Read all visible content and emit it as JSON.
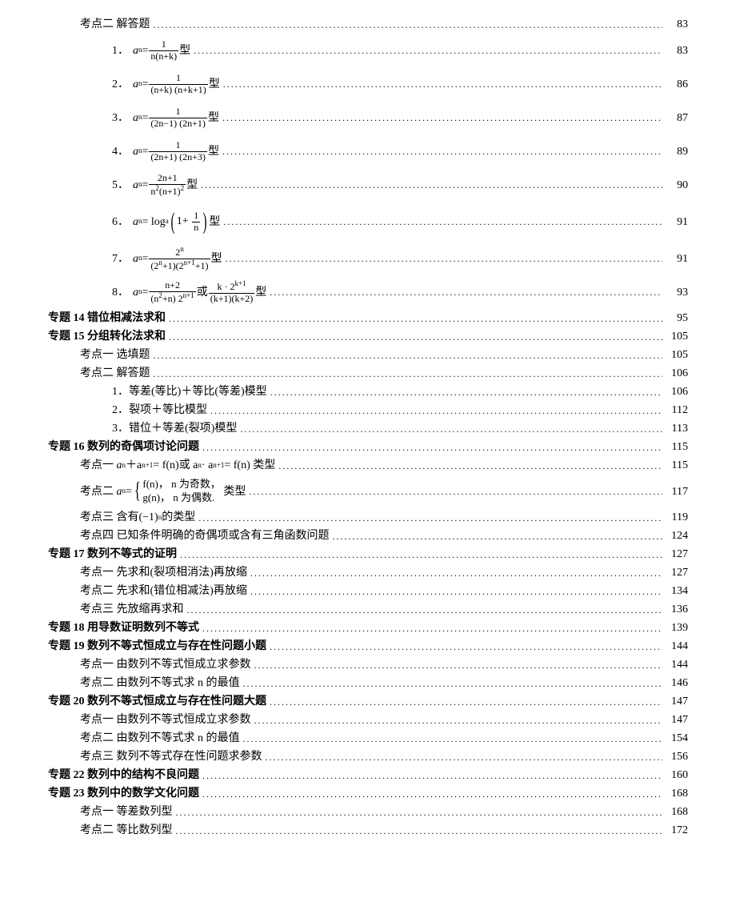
{
  "text_color": "#000000",
  "background_color": "#ffffff",
  "font_family": "SimSun",
  "base_font_size_pt": 10.5,
  "lines": {
    "l0": {
      "prefix": "考点二",
      "label": "解答题",
      "page": "83"
    },
    "l1": {
      "prefix": "1．",
      "an": "a",
      "eq": "=",
      "num": "1",
      "den": "n(n+k)",
      "suffix": "型",
      "page": "83"
    },
    "l2": {
      "prefix": "2．",
      "an": "a",
      "eq": "=",
      "num": "1",
      "den": "(n+k) (n+k+1)",
      "suffix": "型",
      "page": "86"
    },
    "l3": {
      "prefix": "3．",
      "an": "a",
      "eq": "=",
      "num": "1",
      "den": "(2n−1) (2n+1)",
      "suffix": "型",
      "page": "87"
    },
    "l4": {
      "prefix": "4．",
      "an": "a",
      "eq": "=",
      "num": "1",
      "den": "(2n+1) (2n+3)",
      "suffix": "型",
      "page": "89"
    },
    "l5": {
      "prefix": "5．",
      "an": "a",
      "eq": "=",
      "num": "2n+1",
      "den_pre": "n",
      "den_exp": "2",
      "den_mid": "(n+1)",
      "den_exp2": "2",
      "suffix": "型",
      "page": "90"
    },
    "l6": {
      "prefix": "6．",
      "an": "a",
      "eq": "= log",
      "inner_num": "1",
      "inner_den": "n",
      "inner_pre": "1+",
      "suffix": "型",
      "page": "91"
    },
    "l7": {
      "prefix": "7．",
      "an": "a",
      "eq": "=",
      "num_pre": "2",
      "num_exp": "n",
      "den": "(2",
      "den_e1": "n",
      "den_m": "+1)(2",
      "den_e2": "n+1",
      "den_end": "+1)",
      "suffix": "型",
      "page": "91"
    },
    "l8": {
      "prefix": "8．",
      "an": "a",
      "eq": "=",
      "f1_num": "n+2",
      "f1_den_a": "(n",
      "f1_den_e": "2",
      "f1_den_b": "+n) 2",
      "f1_den_e2": "n+1",
      "or": "或",
      "f2_num_a": "k · 2",
      "f2_num_e": "k+1",
      "f2_den": "(k+1)(k+2)",
      "suffix": "型",
      "page": "93"
    },
    "l9": {
      "prefix": "专题 14",
      "label": "错位相减法求和",
      "page": "95"
    },
    "l10": {
      "prefix": "专题 15",
      "label": "分组转化法求和",
      "page": "105"
    },
    "l11": {
      "prefix": "考点一",
      "label": "选填题",
      "page": "105"
    },
    "l12": {
      "prefix": "考点二",
      "label": "解答题",
      "page": "106"
    },
    "l13": {
      "prefix": "1．",
      "label": "等差(等比)＋等比(等差)模型",
      "page": "106"
    },
    "l14": {
      "prefix": "2．",
      "label": "裂项＋等比模型",
      "page": "112"
    },
    "l15": {
      "prefix": "3．",
      "label": "错位＋等差(裂项)模型",
      "page": "113"
    },
    "l16": {
      "prefix": "专题 16",
      "label": "数列的奇偶项讨论问题",
      "page": "115"
    },
    "l17": {
      "prefix": "考点一",
      "an": "a",
      "plus": "＋a",
      "eq1": "= f(n)",
      "or": "或 a",
      "mid": " · a",
      "eq2": "= f(n) 类型",
      "page": "115"
    },
    "l18": {
      "prefix": "考点二",
      "an": "a",
      "eq": "=",
      "case1": "f(n)， n 为奇数，",
      "case2": "g(n)， n 为偶数.",
      "suffix": "类型",
      "page": "117"
    },
    "l19": {
      "prefix": "考点三",
      "label_a": "含有(−1)",
      "label_exp": "n",
      "label_b": "的类型",
      "page": "119"
    },
    "l20": {
      "prefix": "考点四",
      "label": "已知条件明确的奇偶项或含有三角函数问题",
      "page": "124"
    },
    "l21": {
      "prefix": "专题 17",
      "label": "数列不等式的证明",
      "page": "127"
    },
    "l22": {
      "prefix": "考点一",
      "label": "先求和(裂项相消法)再放缩",
      "page": "127"
    },
    "l23": {
      "prefix": "考点二",
      "label": "先求和(错位相减法)再放缩",
      "page": "134"
    },
    "l24": {
      "prefix": "考点三",
      "label": "先放缩再求和",
      "page": "136"
    },
    "l25": {
      "prefix": "专题 18",
      "label": "用导数证明数列不等式",
      "page": "139"
    },
    "l26": {
      "prefix": "专题 19",
      "label": "数列不等式恒成立与存在性问题小题",
      "page": "144"
    },
    "l27": {
      "prefix": "考点一",
      "label": "由数列不等式恒成立求参数",
      "page": "144"
    },
    "l28": {
      "prefix": "考点二",
      "label": "由数列不等式求 n 的最值",
      "page": "146"
    },
    "l29": {
      "prefix": "专题 20",
      "label": "数列不等式恒成立与存在性问题大题",
      "page": "147"
    },
    "l30": {
      "prefix": "考点一",
      "label": "由数列不等式恒成立求参数",
      "page": "147"
    },
    "l31": {
      "prefix": "考点二",
      "label": "由数列不等式求 n 的最值",
      "page": "154"
    },
    "l32": {
      "prefix": "考点三",
      "label": "数列不等式存在性问题求参数",
      "page": "156"
    },
    "l33": {
      "prefix": "专题 22",
      "label": "数列中的结构不良问题",
      "page": "160"
    },
    "l34": {
      "prefix": "专题 23",
      "label": "数列中的数学文化问题",
      "page": "168"
    },
    "l35": {
      "prefix": "考点一",
      "label": "等差数列型",
      "page": "168"
    },
    "l36": {
      "prefix": "考点二",
      "label": "等比数列型",
      "page": "172"
    }
  }
}
